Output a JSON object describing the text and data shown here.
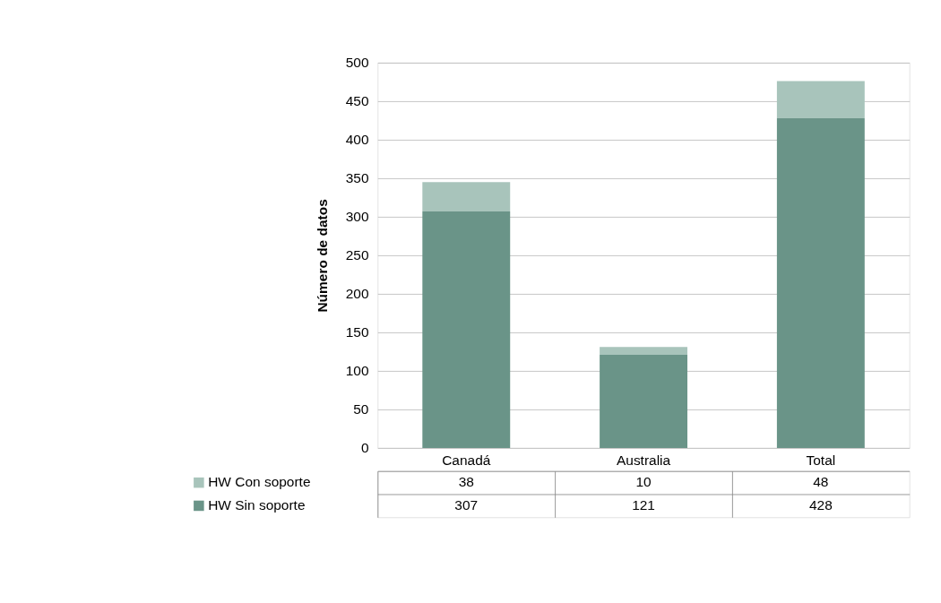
{
  "chart_data": {
    "type": "bar",
    "stacked": true,
    "ylabel": "Número de datos",
    "categories": [
      "Canadá",
      "Australia",
      "Total"
    ],
    "series": [
      {
        "name": "HW Sin soporte",
        "color": "#6a9488",
        "values": [
          307,
          121,
          428
        ]
      },
      {
        "name": "HW Con soporte",
        "color": "#a8c4bb",
        "values": [
          38,
          10,
          48
        ]
      }
    ],
    "ylim": [
      0,
      500
    ],
    "yticks": [
      0,
      50,
      100,
      150,
      200,
      250,
      300,
      350,
      400,
      450,
      500
    ],
    "grid": "y",
    "data_labels": true,
    "legend": "bottom left"
  }
}
